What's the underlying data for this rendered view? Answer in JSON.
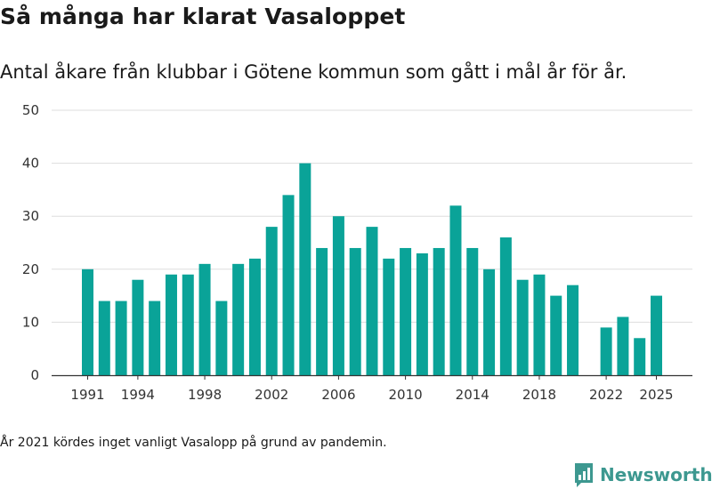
{
  "header": {
    "title": "Så många har klarat Vasaloppet",
    "subtitle": "Antal åkare från klubbar i Götene kommun som gått i mål år för år."
  },
  "footer": {
    "note": "År 2021 kördes inget vanligt Vasalopp på grund av pandemin.",
    "brand": "Newsworthy"
  },
  "colors": {
    "bar": "#0aa398",
    "grid": "#dddddd",
    "axis": "#333333",
    "brand": "#3d9890"
  },
  "chart_data": {
    "type": "bar",
    "title": "Så många har klarat Vasaloppet",
    "subtitle": "Antal åkare från klubbar i Götene kommun som gått i mål år för år.",
    "xlabel": "",
    "ylabel": "",
    "ylim": [
      0,
      50
    ],
    "yticks": [
      0,
      10,
      20,
      30,
      40,
      50
    ],
    "xticks": [
      1991,
      1994,
      1998,
      2002,
      2006,
      2010,
      2014,
      2018,
      2022,
      2025
    ],
    "xrange": [
      1991,
      2025
    ],
    "grid": true,
    "series": [
      {
        "name": "Antal åkare",
        "x": [
          1991,
          1992,
          1993,
          1994,
          1995,
          1996,
          1997,
          1998,
          1999,
          2000,
          2001,
          2002,
          2003,
          2004,
          2005,
          2006,
          2007,
          2008,
          2009,
          2010,
          2011,
          2012,
          2013,
          2014,
          2015,
          2016,
          2017,
          2018,
          2019,
          2020,
          2022,
          2023,
          2024,
          2025
        ],
        "values": [
          20,
          14,
          14,
          18,
          14,
          19,
          19,
          21,
          14,
          21,
          22,
          28,
          34,
          40,
          24,
          30,
          24,
          28,
          22,
          24,
          23,
          24,
          32,
          24,
          20,
          26,
          18,
          19,
          15,
          17,
          9,
          11,
          7,
          15
        ]
      }
    ]
  }
}
